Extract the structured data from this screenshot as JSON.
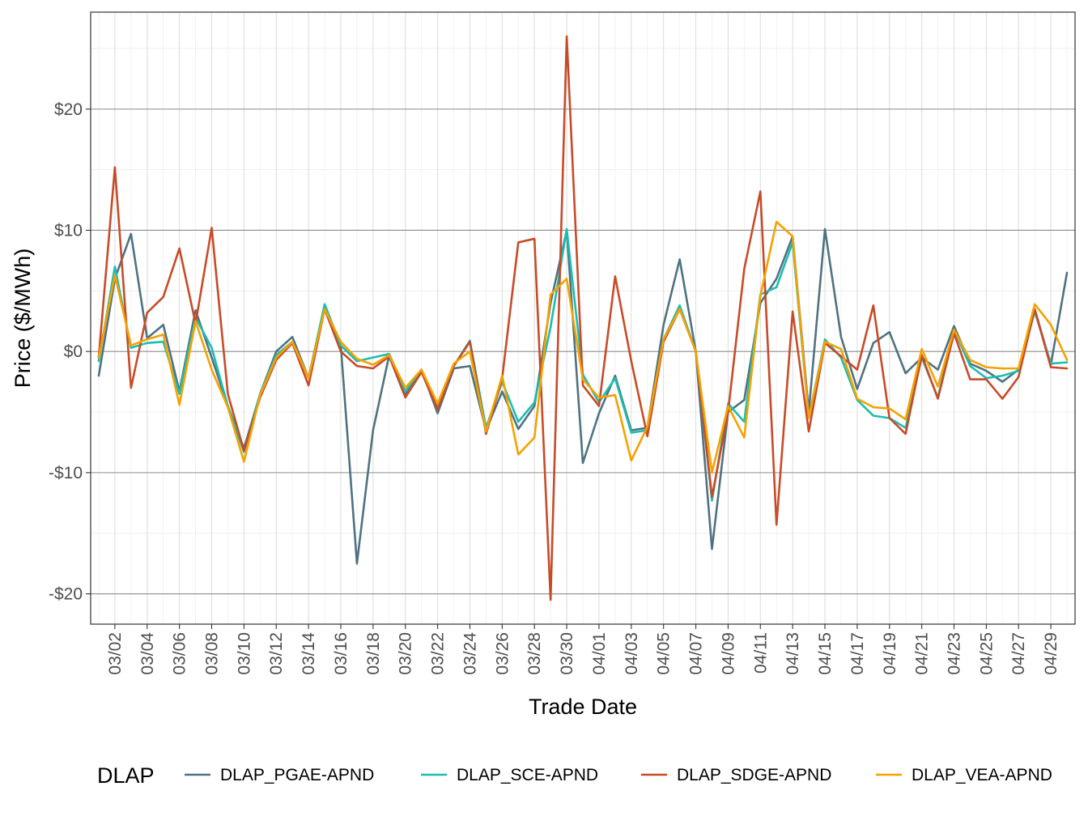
{
  "chart_data": {
    "type": "line",
    "xlabel": "Trade Date",
    "ylabel": "Price ($/MWh)",
    "x_ticks": [
      "03/02",
      "03/04",
      "03/06",
      "03/08",
      "03/10",
      "03/12",
      "03/14",
      "03/16",
      "03/18",
      "03/20",
      "03/22",
      "03/24",
      "03/26",
      "03/28",
      "03/30",
      "04/01",
      "04/03",
      "04/05",
      "04/07",
      "04/09",
      "04/11",
      "04/13",
      "04/15",
      "04/17",
      "04/19",
      "04/21",
      "04/23",
      "04/25",
      "04/27",
      "04/29"
    ],
    "y_ticks": [
      {
        "value": -20,
        "label": "-$20"
      },
      {
        "value": -10,
        "label": "-$10"
      },
      {
        "value": 0,
        "label": "$0"
      },
      {
        "value": 10,
        "label": "$10"
      },
      {
        "value": 20,
        "label": "$20"
      }
    ],
    "ylim": [
      -22.5,
      28
    ],
    "x": [
      "03/01",
      "03/02",
      "03/03",
      "03/04",
      "03/05",
      "03/06",
      "03/07",
      "03/08",
      "03/09",
      "03/10",
      "03/11",
      "03/12",
      "03/13",
      "03/14",
      "03/15",
      "03/16",
      "03/17",
      "03/18",
      "03/19",
      "03/20",
      "03/21",
      "03/22",
      "03/23",
      "03/24",
      "03/25",
      "03/26",
      "03/27",
      "03/28",
      "03/29",
      "03/30",
      "03/31",
      "04/01",
      "04/02",
      "04/03",
      "04/04",
      "04/05",
      "04/06",
      "04/07",
      "04/08",
      "04/09",
      "04/10",
      "04/11",
      "04/12",
      "04/13",
      "04/14",
      "04/15",
      "04/16",
      "04/17",
      "04/18",
      "04/19",
      "04/20",
      "04/21",
      "04/22",
      "04/23",
      "04/24",
      "04/25",
      "04/26",
      "04/27",
      "04/28",
      "04/29",
      "04/30"
    ],
    "legend": {
      "title": "DLAP",
      "position": "bottom"
    },
    "grid": true,
    "series": [
      {
        "name": "DLAP_PGAE-APND",
        "color": "#4F7282",
        "values": [
          -2.0,
          6.0,
          9.7,
          1.1,
          2.2,
          -3.3,
          3.4,
          -0.5,
          -4.5,
          -8.0,
          -3.5,
          0.0,
          1.2,
          -2.2,
          3.8,
          0.5,
          -17.5,
          -6.5,
          -0.3,
          -3.5,
          -1.5,
          -5.1,
          -1.4,
          -1.2,
          -6.5,
          -3.3,
          -6.4,
          -4.5,
          4.0,
          10.0,
          -9.2,
          -5.1,
          -2.0,
          -6.5,
          -6.3,
          2.2,
          7.6,
          0.0,
          -16.3,
          -5.0,
          -4.0,
          4.0,
          6.0,
          9.5,
          -5.0,
          10.1,
          1.2,
          -3.1,
          0.7,
          1.6,
          -1.8,
          -0.5,
          -1.5,
          2.1,
          -1.0,
          -1.6,
          -2.5,
          -1.5,
          3.5,
          -1.1,
          6.5
        ]
      },
      {
        "name": "DLAP_SCE-APND",
        "color": "#1CBDB0",
        "values": [
          -0.8,
          7.0,
          0.3,
          0.7,
          0.8,
          -3.5,
          2.8,
          0.3,
          -4.5,
          -8.3,
          -3.5,
          -0.3,
          0.8,
          -2.2,
          3.9,
          0.5,
          -0.8,
          -0.5,
          -0.2,
          -3.3,
          -1.5,
          -4.6,
          -1.2,
          0.9,
          -6.3,
          -2.5,
          -5.8,
          -4.2,
          2.0,
          10.1,
          -1.9,
          -4.2,
          -2.2,
          -6.7,
          -6.5,
          1.0,
          3.8,
          0.0,
          -12.3,
          -4.3,
          -5.8,
          4.7,
          5.3,
          9.0,
          -5.5,
          1.0,
          -0.5,
          -4.0,
          -5.3,
          -5.5,
          -6.3,
          -0.5,
          -3.8,
          1.8,
          -1.2,
          -2.2,
          -2.0,
          -1.6,
          3.3,
          -1.0,
          -0.9
        ]
      },
      {
        "name": "DLAP_SDGE-APND",
        "color": "#C84B28",
        "values": [
          -0.5,
          15.2,
          -3.0,
          3.2,
          4.5,
          8.5,
          2.3,
          10.2,
          -3.5,
          -8.2,
          -3.8,
          -0.7,
          0.7,
          -2.8,
          3.5,
          0.0,
          -1.2,
          -1.4,
          -0.4,
          -3.8,
          -1.7,
          -4.8,
          -1.2,
          0.8,
          -6.8,
          -2.2,
          9.0,
          9.3,
          -20.5,
          26.0,
          -2.8,
          -4.5,
          6.2,
          -0.8,
          -7.0,
          0.8,
          3.5,
          0.0,
          -12.0,
          -5.0,
          6.8,
          13.2,
          -14.3,
          3.3,
          -6.6,
          0.7,
          -0.4,
          -1.5,
          3.8,
          -5.5,
          -6.8,
          -0.3,
          -3.9,
          1.5,
          -2.3,
          -2.3,
          -3.9,
          -2.1,
          3.5,
          -1.3,
          -1.4
        ]
      },
      {
        "name": "DLAP_VEA-APND",
        "color": "#F5A200",
        "values": [
          -0.5,
          6.3,
          0.5,
          1.0,
          1.4,
          -4.4,
          2.5,
          -1.5,
          -4.6,
          -9.1,
          -3.6,
          -0.5,
          0.8,
          -2.2,
          3.5,
          0.8,
          -0.6,
          -1.1,
          -0.3,
          -3.0,
          -1.5,
          -4.3,
          -1.0,
          0.0,
          -6.6,
          -2.0,
          -8.5,
          -7.1,
          4.7,
          6.0,
          -2.3,
          -3.8,
          -3.6,
          -9.0,
          -6.2,
          1.0,
          3.5,
          0.0,
          -10.0,
          -4.5,
          -7.1,
          4.6,
          10.7,
          9.5,
          -5.5,
          0.8,
          0.2,
          -3.9,
          -4.6,
          -4.7,
          -5.6,
          0.2,
          -2.9,
          1.8,
          -0.7,
          -1.3,
          -1.4,
          -1.4,
          3.9,
          2.2,
          -0.7
        ]
      }
    ]
  }
}
